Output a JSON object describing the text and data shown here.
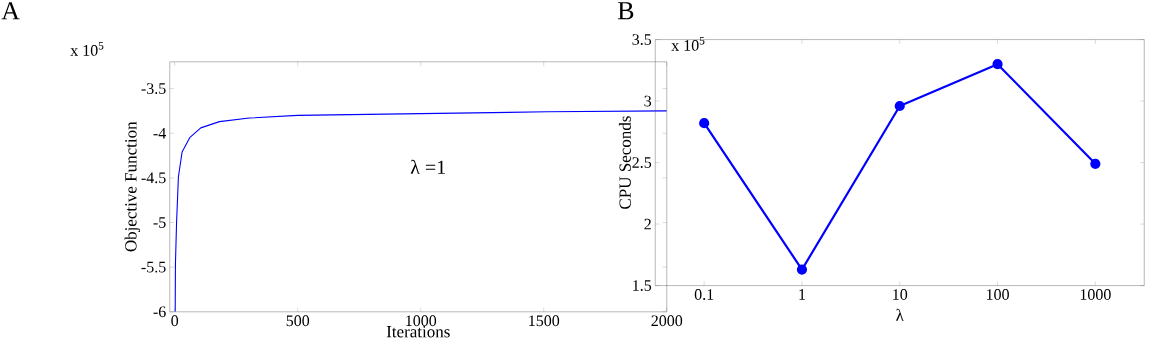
{
  "chart_data": [
    {
      "type": "line",
      "title": "A",
      "xlabel": "Iterations",
      "ylabel": "Objective Function",
      "annotations": [
        "x 10$^{5}$",
        "λ =1"
      ],
      "x": [
        2,
        3,
        7.6,
        15,
        30,
        61,
        106,
        182,
        303,
        500,
        1000,
        1515,
        2000
      ],
      "values": [
        -6.0,
        -5.46,
        -5.0,
        -4.49,
        -4.21,
        -4.05,
        -3.94,
        -3.87,
        -3.83,
        -3.8,
        -3.78,
        -3.76,
        -3.75
      ],
      "color": "#0000ff",
      "xlim": [
        -20,
        2000
      ],
      "ylim": [
        -6,
        -3.2
      ],
      "xticks": [
        0,
        500,
        1000,
        1500,
        2000
      ],
      "yticks": [
        -6,
        -5.5,
        -5,
        -4.5,
        -4,
        -3.5
      ]
    },
    {
      "type": "line",
      "title": "B",
      "xlabel": "λ",
      "ylabel": "CPU Seconds",
      "annotations": [
        "x 10$^{5}$"
      ],
      "categories": [
        "0.1",
        "1",
        "10",
        "100",
        "1000"
      ],
      "values": [
        2.82,
        1.63,
        2.96,
        3.3,
        2.49
      ],
      "color": "#0000ff",
      "marker": "circle",
      "ylim": [
        1.5,
        3.5
      ],
      "yticks": [
        1.5,
        2,
        2.5,
        3,
        3.5
      ]
    }
  ]
}
